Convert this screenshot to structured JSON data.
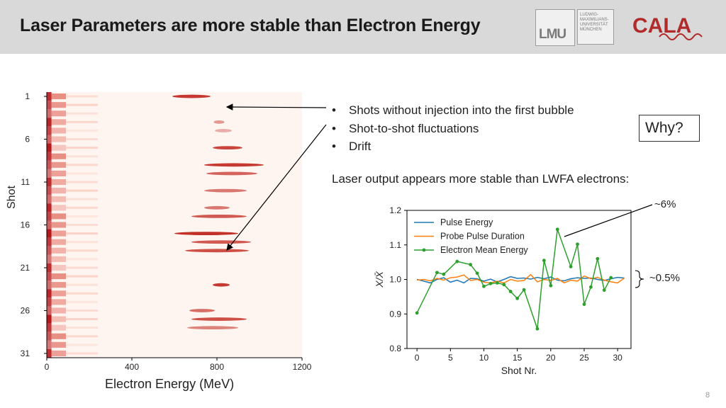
{
  "header": {
    "title": "Laser Parameters are more stable than Electron Energy",
    "lmu_logo": "LMU",
    "univ_logo_lines": [
      "LUDWIG-",
      "MAXIMILIANS-",
      "UNIVERSITÄT",
      "MÜNCHEN"
    ],
    "cala_logo": "CALA"
  },
  "bullets": [
    "Shots without injection into the first bubble",
    "Shot-to-shot fluctuations",
    "Drift"
  ],
  "why_box": "Why?",
  "laser_text": "Laser output appears more stable than LWFA electrons:",
  "annotations": {
    "electron_fluct": "~6%",
    "laser_fluct": "~0.5%"
  },
  "page_number": "8",
  "colors": {
    "blue": "#1f77b4",
    "orange": "#ff7f0e",
    "green": "#2ca02c",
    "heat": "#b40f14"
  },
  "chart_data": [
    {
      "type": "heatmap",
      "xlabel": "Electron Energy (MeV)",
      "ylabel": "Shot",
      "x_ticks": [
        "0",
        "400",
        "800",
        "1200"
      ],
      "y_ticks": [
        "1",
        "6",
        "11",
        "16",
        "21",
        "26",
        "31"
      ],
      "xlim": [
        0,
        1200
      ],
      "ylim": [
        1,
        31
      ],
      "peaks": [
        {
          "shot": 1,
          "energy": 680,
          "width": 90,
          "intensity": 0.9
        },
        {
          "shot": 4,
          "energy": 810,
          "width": 25,
          "intensity": 0.45
        },
        {
          "shot": 5,
          "energy": 830,
          "width": 40,
          "intensity": 0.35
        },
        {
          "shot": 7,
          "energy": 850,
          "width": 70,
          "intensity": 0.85
        },
        {
          "shot": 9,
          "energy": 880,
          "width": 140,
          "intensity": 0.9
        },
        {
          "shot": 10,
          "energy": 870,
          "width": 120,
          "intensity": 0.7
        },
        {
          "shot": 12,
          "energy": 840,
          "width": 100,
          "intensity": 0.6
        },
        {
          "shot": 14,
          "energy": 800,
          "width": 60,
          "intensity": 0.6
        },
        {
          "shot": 15,
          "energy": 810,
          "width": 130,
          "intensity": 0.75
        },
        {
          "shot": 17,
          "energy": 750,
          "width": 150,
          "intensity": 0.95
        },
        {
          "shot": 18,
          "energy": 820,
          "width": 140,
          "intensity": 0.75
        },
        {
          "shot": 19,
          "energy": 800,
          "width": 150,
          "intensity": 0.8
        },
        {
          "shot": 23,
          "energy": 820,
          "width": 40,
          "intensity": 0.9
        },
        {
          "shot": 26,
          "energy": 730,
          "width": 60,
          "intensity": 0.65
        },
        {
          "shot": 27,
          "energy": 810,
          "width": 130,
          "intensity": 0.8
        },
        {
          "shot": 28,
          "energy": 780,
          "width": 120,
          "intensity": 0.55
        }
      ]
    },
    {
      "type": "line",
      "xlabel": "Shot Nr.",
      "ylabel": "X/X̄",
      "xlim": [
        -1.5,
        32
      ],
      "ylim": [
        0.8,
        1.2
      ],
      "x_ticks": [
        0,
        5,
        10,
        15,
        20,
        25,
        30
      ],
      "y_ticks": [
        "0.8",
        "0.9",
        "1.0",
        "1.1",
        "1.2"
      ],
      "legend_position": "upper-left",
      "series": [
        {
          "name": "Pulse Energy",
          "color": "#1f77b4",
          "markers": false,
          "x": [
            0,
            1,
            2,
            3,
            4,
            5,
            6,
            7,
            8,
            9,
            10,
            11,
            12,
            13,
            14,
            15,
            16,
            17,
            18,
            19,
            20,
            21,
            22,
            23,
            24,
            25,
            26,
            27,
            28,
            29,
            30,
            31
          ],
          "y": [
            1.0,
            0.995,
            0.99,
            1.0,
            1.005,
            0.992,
            0.998,
            0.99,
            1.003,
            1.002,
            0.995,
            1.001,
            0.993,
            1.0,
            1.008,
            1.003,
            1.004,
            1.001,
            1.006,
            1.002,
            1.007,
            0.998,
            0.996,
            1.002,
            1.005,
            1.003,
            1.004,
            1.0,
            0.997,
            1.002,
            1.006,
            1.004
          ]
        },
        {
          "name": "Probe Pulse Duration",
          "color": "#ff7f0e",
          "markers": false,
          "x": [
            0,
            1,
            2,
            3,
            4,
            5,
            6,
            7,
            8,
            9,
            10,
            11,
            12,
            13,
            14,
            15,
            16,
            17,
            18,
            19,
            20,
            21,
            22,
            23,
            24,
            25,
            26,
            27,
            28,
            29,
            30,
            31
          ],
          "y": [
            0.998,
            1.0,
            0.996,
            1.003,
            0.998,
            1.005,
            1.007,
            1.013,
            0.997,
            1.0,
            0.992,
            0.99,
            0.995,
            0.99,
            1.0,
            0.995,
            0.997,
            1.014,
            0.993,
            1.0,
            0.997,
            1.003,
            0.99,
            0.998,
            0.995,
            1.01,
            1.002,
            1.006,
            0.998,
            0.993,
            0.99,
            1.004
          ]
        },
        {
          "name": "Electron Mean Energy",
          "color": "#2ca02c",
          "markers": true,
          "x": [
            0,
            3,
            4,
            6,
            8,
            9,
            10,
            11,
            12,
            13,
            14,
            15,
            16,
            18,
            19,
            20,
            21,
            23,
            24,
            25,
            26,
            27,
            28,
            29
          ],
          "y": [
            0.903,
            1.02,
            1.015,
            1.052,
            1.043,
            1.018,
            0.98,
            0.988,
            0.99,
            0.985,
            0.965,
            0.945,
            0.97,
            0.857,
            1.055,
            0.982,
            1.145,
            1.037,
            1.102,
            0.928,
            0.978,
            1.06,
            0.969,
            1.005
          ]
        }
      ]
    }
  ]
}
